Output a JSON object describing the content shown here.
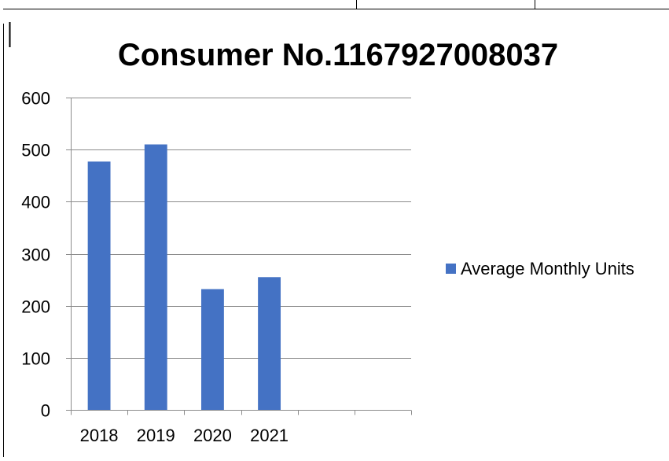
{
  "chart_data": {
    "type": "bar",
    "title": "Consumer No.1167927008037",
    "xlabel": "",
    "ylabel": "",
    "categories": [
      "2018",
      "2019",
      "2020",
      "2021",
      "",
      ""
    ],
    "series": [
      {
        "name": "Average Monthly Units",
        "values": [
          477,
          510,
          232,
          255,
          null,
          null
        ],
        "color": "#4472C4"
      }
    ],
    "ylim": [
      0,
      600
    ],
    "yticks": [
      "0",
      "100",
      "200",
      "300",
      "400",
      "500",
      "600"
    ],
    "grid": true,
    "legend": "right"
  }
}
